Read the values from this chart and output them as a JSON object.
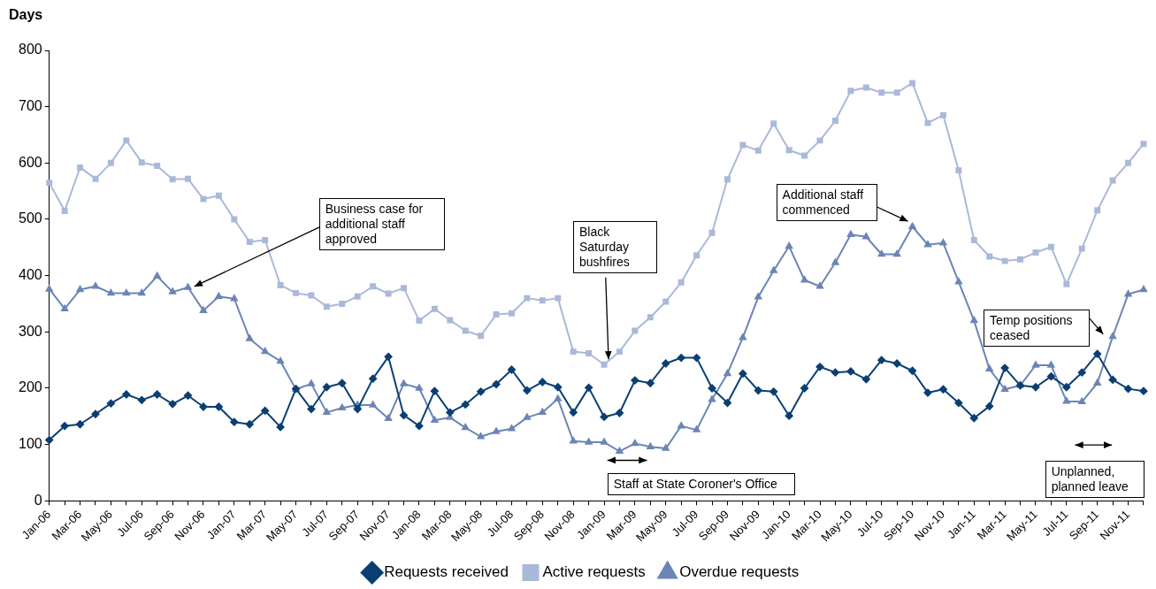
{
  "chart_data": {
    "type": "line",
    "ylabel": "Days",
    "categories": [
      "Jan-06",
      null,
      "Mar-06",
      null,
      "May-06",
      null,
      "Jul-06",
      null,
      "Sep-06",
      null,
      "Nov-06",
      null,
      "Jan-07",
      null,
      "Mar-07",
      null,
      "May-07",
      null,
      "Jul-07",
      null,
      "Sep-07",
      null,
      "Nov-07",
      null,
      "Jan-08",
      null,
      "Mar-08",
      null,
      "May-08",
      null,
      "Jul-08",
      null,
      "Sep-08",
      null,
      "Nov-08",
      null,
      "Jan-09",
      null,
      "Mar-09",
      null,
      "May-09",
      null,
      "Jul-09",
      null,
      "Sep-09",
      null,
      "Nov-09",
      null,
      "Jan-10",
      null,
      "Mar-10",
      null,
      "May-10",
      null,
      "Jul-10",
      null,
      "Sep-10",
      null,
      "Nov-10",
      null,
      "Jan-11",
      null,
      "Mar-11",
      null,
      "May-11",
      null,
      "Jul-11",
      null,
      "Sep-11",
      null,
      "Nov-11",
      null
    ],
    "series": [
      {
        "name": "Requests received",
        "color": "#0b3f73",
        "marker": "diamond",
        "values": [
          108,
          133,
          136,
          154,
          173,
          189,
          179,
          189,
          172,
          187,
          167,
          167,
          140,
          136,
          160,
          131,
          199,
          163,
          202,
          209,
          163,
          217,
          256,
          152,
          133,
          195,
          157,
          171,
          194,
          207,
          233,
          196,
          211,
          202,
          157,
          201,
          149,
          156,
          214,
          209,
          244,
          254,
          254,
          200,
          174,
          226,
          196,
          194,
          151,
          200,
          238,
          228,
          230,
          216,
          250,
          244,
          231,
          192,
          198,
          174,
          147,
          168,
          236,
          205,
          202,
          221,
          202,
          228,
          261,
          215,
          199,
          195
        ]
      },
      {
        "name": "Active requests",
        "color": "#a9b9d9",
        "marker": "square",
        "values": [
          565,
          515,
          592,
          572,
          600,
          640,
          601,
          595,
          571,
          572,
          536,
          542,
          500,
          460,
          463,
          383,
          369,
          365,
          345,
          350,
          363,
          381,
          368,
          378,
          320,
          341,
          321,
          302,
          293,
          331,
          333,
          360,
          356,
          360,
          265,
          262,
          242,
          265,
          302,
          326,
          354,
          388,
          436,
          476,
          571,
          632,
          622,
          670,
          623,
          613,
          640,
          675,
          728,
          734,
          725,
          725,
          742,
          671,
          685,
          587,
          463,
          434,
          426,
          429,
          441,
          451,
          385,
          448,
          516,
          569,
          600,
          634
        ]
      },
      {
        "name": "Overdue requests",
        "color": "#6b85b5",
        "marker": "triangle",
        "values": [
          376,
          341,
          375,
          381,
          369,
          369,
          369,
          399,
          371,
          379,
          338,
          363,
          359,
          288,
          265,
          248,
          198,
          208,
          157,
          165,
          170,
          170,
          146,
          208,
          200,
          143,
          148,
          130,
          114,
          123,
          128,
          148,
          157,
          181,
          106,
          104,
          104,
          88,
          102,
          96,
          93,
          133,
          126,
          180,
          226,
          290,
          362,
          409,
          452,
          392,
          381,
          423,
          473,
          469,
          438,
          438,
          487,
          455,
          458,
          389,
          320,
          234,
          198,
          205,
          241,
          241,
          177,
          176,
          209,
          292,
          367,
          375
        ]
      }
    ],
    "ylim": [
      0,
      800
    ],
    "yticks": [
      0,
      100,
      200,
      300,
      400,
      500,
      600,
      700,
      800
    ],
    "grid": false,
    "legend": "bottom",
    "annotations": [
      "Business case for additional staff approved",
      {
        "text": "Black Saturday bushfires",
        "x": "Jan-09",
        "y": 242
      },
      {
        "text": "Additional staff commenced",
        "x": "Sep-10",
        "y": 487
      },
      "Staff at State Coroner's Office",
      "Temp positions ceased",
      "Unplanned, planned leave"
    ]
  }
}
